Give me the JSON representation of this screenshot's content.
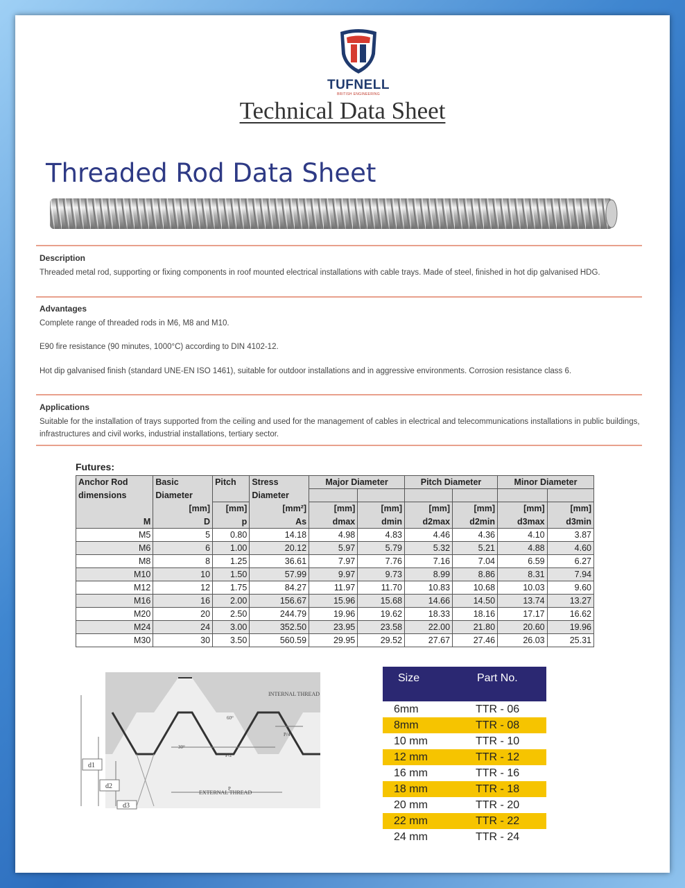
{
  "brand": {
    "name": "TUFNELL",
    "tagline": "BRITISH ENGINEERING"
  },
  "header": {
    "title": "Technical Data Sheet"
  },
  "product_title": "Threaded Rod Data Sheet",
  "description": {
    "heading": "Description",
    "text": "Threaded metal rod, supporting or fixing components in roof mounted electrical installations with cable trays. Made of steel, finished in hot dip galvanised HDG."
  },
  "advantages": {
    "heading": "Advantages",
    "items": [
      "Complete range of threaded rods in M6, M8 and M10.",
      "E90 fire resistance (90 minutes, 1000°C) according to DIN 4102-12.",
      "Hot dip galvanised finish (standard UNE-EN ISO 1461), suitable for outdoor installations and in aggressive environments. Corrosion resistance class 6."
    ]
  },
  "applications": {
    "heading": "Applications",
    "text": "Suitable for the installation of trays supported from the ceiling and used for the management of cables in electrical and telecommunications installations in public buildings, infrastructures and civil works, industrial installations, tertiary sector."
  },
  "futures": {
    "title": "Futures:",
    "group_headers": {
      "anchor": "Anchor Rod",
      "anchor2": "dimensions",
      "basic": "Basic",
      "basic2": "Diameter",
      "pitch": "Pitch",
      "stress": "Stress",
      "stress2": "Diameter",
      "major": "Major Diameter",
      "pitchd": "Pitch Diameter",
      "minor": "Minor Diameter"
    },
    "unit_row": [
      "",
      "[mm]",
      "[mm]",
      "[mm²]",
      "[mm]",
      "[mm]",
      "[mm]",
      "[mm]",
      "[mm]",
      "[mm]"
    ],
    "symbol_row": [
      "M",
      "D",
      "p",
      "As",
      "dmax",
      "dmin",
      "d2max",
      "d2min",
      "d3max",
      "d3min"
    ],
    "rows": [
      [
        "M5",
        "5",
        "0.80",
        "14.18",
        "4.98",
        "4.83",
        "4.46",
        "4.36",
        "4.10",
        "3.87"
      ],
      [
        "M6",
        "6",
        "1.00",
        "20.12",
        "5.97",
        "5.79",
        "5.32",
        "5.21",
        "4.88",
        "4.60"
      ],
      [
        "M8",
        "8",
        "1.25",
        "36.61",
        "7.97",
        "7.76",
        "7.16",
        "7.04",
        "6.59",
        "6.27"
      ],
      [
        "M10",
        "10",
        "1.50",
        "57.99",
        "9.97",
        "9.73",
        "8.99",
        "8.86",
        "8.31",
        "7.94"
      ],
      [
        "M12",
        "12",
        "1.75",
        "84.27",
        "11.97",
        "11.70",
        "10.83",
        "10.68",
        "10.03",
        "9.60"
      ],
      [
        "M16",
        "16",
        "2.00",
        "156.67",
        "15.96",
        "15.68",
        "14.66",
        "14.50",
        "13.74",
        "13.27"
      ],
      [
        "M20",
        "20",
        "2.50",
        "244.79",
        "19.96",
        "19.62",
        "18.33",
        "18.16",
        "17.17",
        "16.62"
      ],
      [
        "M24",
        "24",
        "3.00",
        "352.50",
        "23.95",
        "23.58",
        "22.00",
        "21.80",
        "20.60",
        "19.96"
      ],
      [
        "M30",
        "30",
        "3.50",
        "560.59",
        "29.95",
        "29.52",
        "27.67",
        "27.46",
        "26.03",
        "25.31"
      ]
    ]
  },
  "diagram": {
    "internal": "INTERNAL THREAD",
    "external": "EXTERNAL THREAD",
    "angle60": "60°",
    "angle30": "30°",
    "p4": "P/4",
    "p2": "P/2",
    "p": "P",
    "d1": "d1",
    "d2": "d2",
    "d3": "d3"
  },
  "part_table": {
    "col_size": "Size",
    "col_part": "Part No.",
    "highlight_color": "#f6c400",
    "header_color": "#2b2872",
    "rows": [
      {
        "size": "6mm",
        "part": "TTR - 06",
        "hl": false
      },
      {
        "size": "8mm",
        "part": "TTR - 08",
        "hl": true
      },
      {
        "size": "10 mm",
        "part": "TTR - 10",
        "hl": false
      },
      {
        "size": "12 mm",
        "part": "TTR - 12",
        "hl": true
      },
      {
        "size": "16 mm",
        "part": "TTR - 16",
        "hl": false
      },
      {
        "size": "18 mm",
        "part": "TTR - 18",
        "hl": true
      },
      {
        "size": "20 mm",
        "part": "TTR - 20",
        "hl": false
      },
      {
        "size": "22 mm",
        "part": "TTR - 22",
        "hl": true
      },
      {
        "size": "24 mm",
        "part": "TTR - 24",
        "hl": false
      }
    ]
  }
}
